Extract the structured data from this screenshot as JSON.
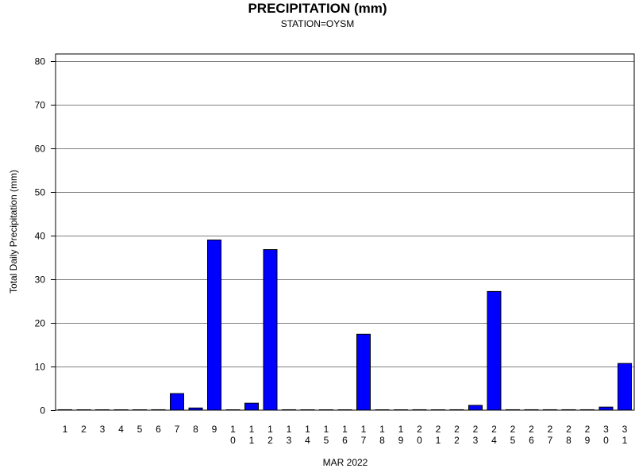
{
  "chart_data": {
    "type": "bar",
    "title": "PRECIPITATION (mm)",
    "subtitle": "STATION=OYSM",
    "xlabel": "MAR 2022",
    "ylabel": "Total Daily Precipitation (mm)",
    "ylim": [
      0,
      80
    ],
    "yticks": [
      "0",
      "10",
      "20",
      "30",
      "40",
      "50",
      "60",
      "70",
      "80"
    ],
    "grid": true,
    "bar_color": "#0000ff",
    "categories": [
      "1",
      "2",
      "3",
      "4",
      "5",
      "6",
      "7",
      "8",
      "9",
      "10",
      "11",
      "12",
      "13",
      "14",
      "15",
      "16",
      "17",
      "18",
      "19",
      "20",
      "21",
      "22",
      "23",
      "24",
      "25",
      "26",
      "27",
      "28",
      "29",
      "30",
      "31"
    ],
    "values": [
      0.1,
      0,
      0,
      0,
      0,
      0.1,
      3.8,
      0.5,
      39,
      0,
      1.6,
      36.8,
      0.1,
      0,
      0,
      0,
      17.4,
      0,
      0,
      0.1,
      0,
      0.1,
      1.1,
      27.2,
      0.1,
      0.1,
      0.1,
      0.1,
      0.1,
      0.7,
      10.7
    ]
  }
}
